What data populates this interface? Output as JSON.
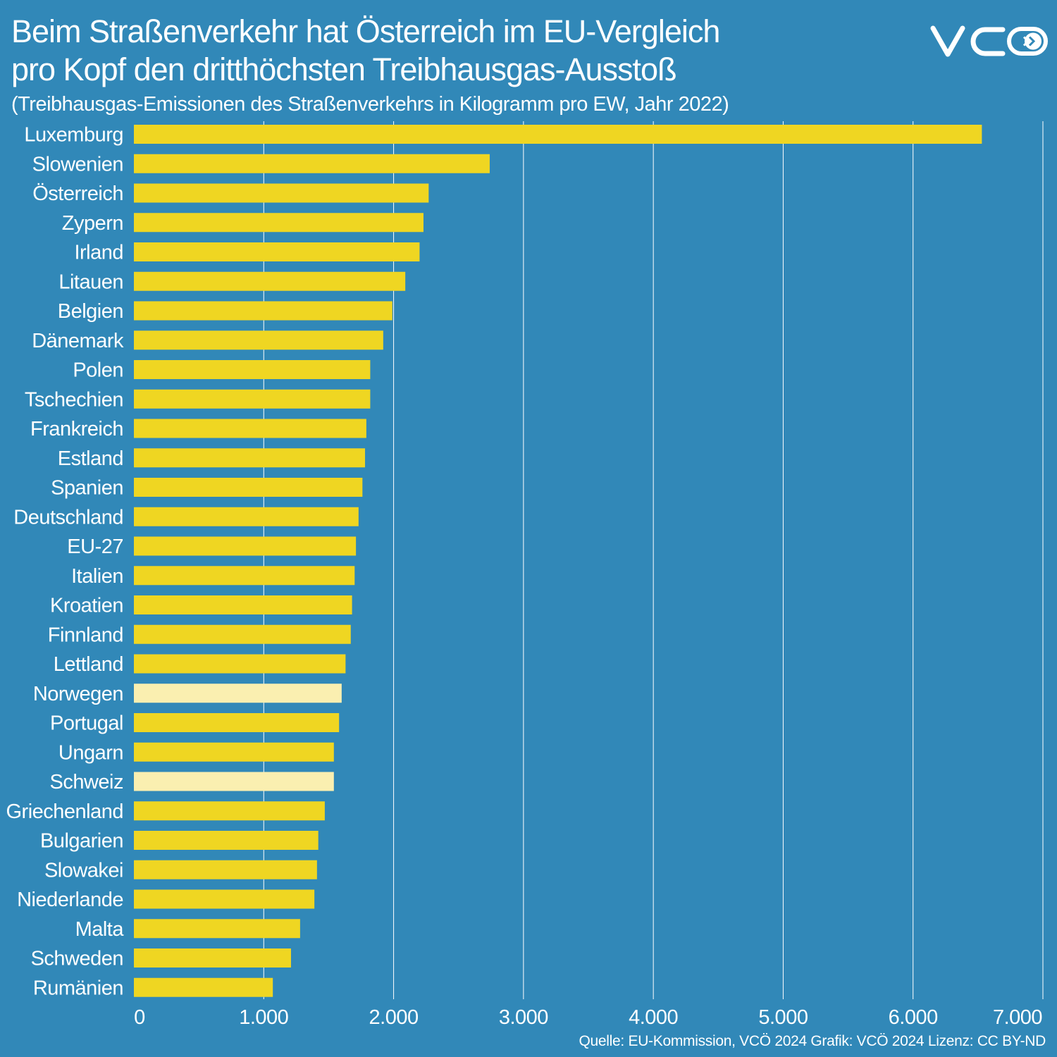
{
  "colors": {
    "background": "#3188b8",
    "bar": "#efd622",
    "bar_highlight": "#faefb0",
    "grid": "#ffffff",
    "text": "#ffffff"
  },
  "logo": {
    "text": "VCÖ",
    "icon": "vco-logo"
  },
  "source": "Quelle: EU-Kommission, VCÖ 2024 Grafik: VCÖ 2024 Lizenz: CC BY-ND",
  "chart_data": {
    "type": "bar",
    "orientation": "horizontal",
    "title": [
      "Beim Straßenverkehr hat Österreich im EU-Vergleich",
      "pro Kopf den dritthöchsten Treibhausgas-Ausstoß"
    ],
    "subtitle": "(Treibhausgas-Emissionen des Straßenverkehrs in Kilogramm pro EW, Jahr 2022)",
    "xlabel": "",
    "ylabel": "",
    "xlim": [
      0,
      7000
    ],
    "grid": true,
    "x_ticks": [
      0,
      1000,
      2000,
      3000,
      4000,
      5000,
      6000,
      7000
    ],
    "x_tick_labels": [
      "0",
      "1.000",
      "2.000",
      "3.000",
      "4.000",
      "5.000",
      "6.000",
      "7.000"
    ],
    "categories": [
      "Luxemburg",
      "Slowenien",
      "Österreich",
      "Zypern",
      "Irland",
      "Litauen",
      "Belgien",
      "Dänemark",
      "Polen",
      "Tschechien",
      "Frankreich",
      "Estland",
      "Spanien",
      "Deutschland",
      "EU-27",
      "Italien",
      "Kroatien",
      "Finnland",
      "Lettland",
      "Norwegen",
      "Portugal",
      "Ungarn",
      "Schweiz",
      "Griechenland",
      "Bulgarien",
      "Slowakei",
      "Niederlande",
      "Malta",
      "Schweden",
      "Rumänien"
    ],
    "values": [
      6530,
      2740,
      2270,
      2230,
      2200,
      2090,
      1990,
      1920,
      1820,
      1820,
      1790,
      1780,
      1760,
      1730,
      1710,
      1700,
      1680,
      1670,
      1630,
      1600,
      1580,
      1540,
      1540,
      1470,
      1420,
      1410,
      1390,
      1280,
      1210,
      1070
    ],
    "highlighted": [
      "Norwegen",
      "Schweiz"
    ]
  }
}
